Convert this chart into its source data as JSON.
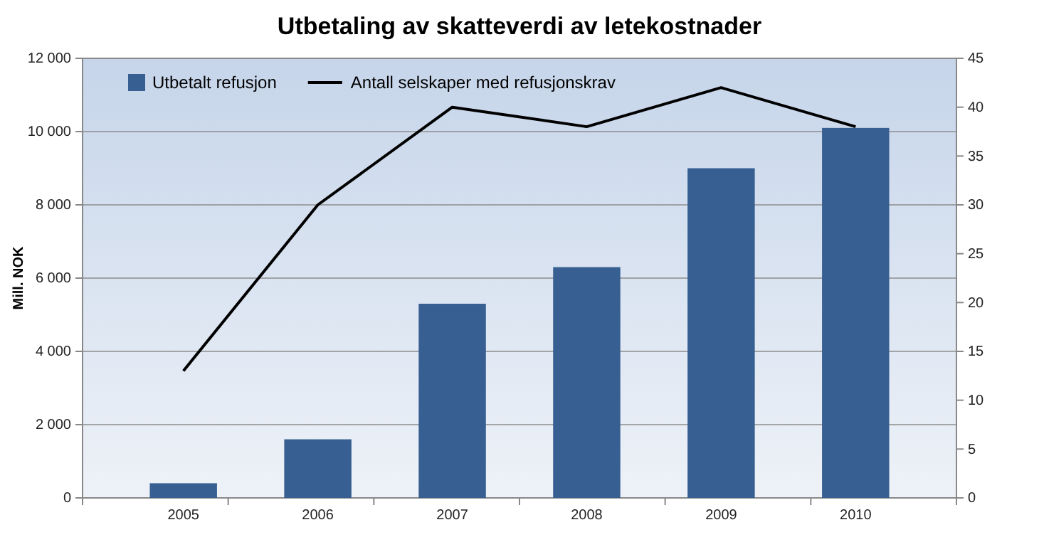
{
  "chart_data": {
    "type": "bar",
    "title": "Utbetaling av skatteverdi av letekostnader",
    "ylabel": "Mill. NOK",
    "categories": [
      "2005",
      "2006",
      "2007",
      "2008",
      "2009",
      "2010"
    ],
    "series": [
      {
        "name": "Utbetalt refusjon",
        "color": "#375f92",
        "values": [
          400,
          1600,
          5300,
          6300,
          9000,
          10100
        ]
      },
      {
        "name": "Antall selskaper med refusjonskrav",
        "type": "line",
        "axis": "y2",
        "color": "#000000",
        "values": [
          13,
          30,
          40,
          38,
          42,
          38
        ]
      }
    ],
    "ylim": [
      0,
      12000
    ],
    "yticks": [
      0,
      {
        "value": 2000,
        "label": "2 000"
      },
      {
        "value": 4000,
        "label": "4 000"
      },
      {
        "value": 6000,
        "label": "6 000"
      },
      {
        "value": 8000,
        "label": "8 000"
      },
      {
        "value": 10000,
        "label": "10 000"
      },
      {
        "value": 12000,
        "label": "12 000"
      }
    ],
    "y2lim": [
      0,
      45
    ],
    "y2ticks": [
      0,
      5,
      10,
      15,
      20,
      25,
      30,
      35,
      40,
      45
    ],
    "grid": "y",
    "legend": "top",
    "marker": "none",
    "line_style": "solid"
  }
}
